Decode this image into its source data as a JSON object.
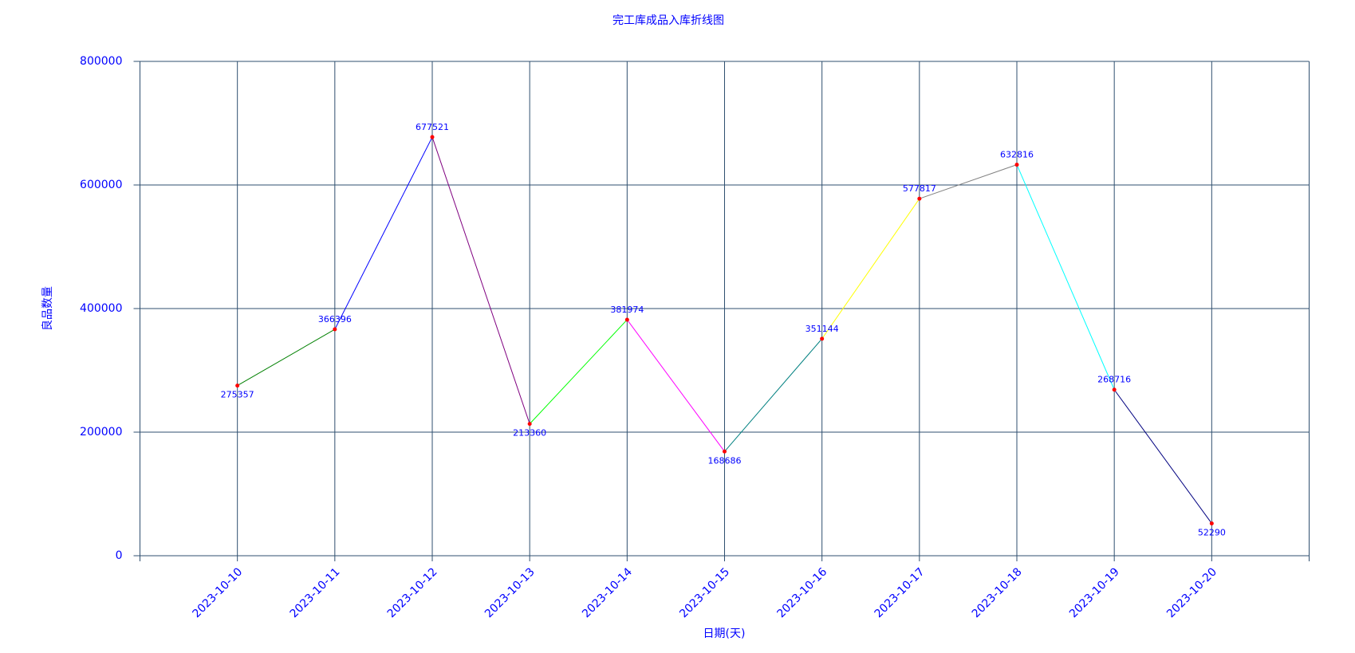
{
  "chart_data": {
    "type": "line",
    "title": "完工库成品入库折线图",
    "x_label": "日期(天)",
    "y_label": "良品数量",
    "categories": [
      "2023-10-10",
      "2023-10-11",
      "2023-10-12",
      "2023-10-13",
      "2023-10-14",
      "2023-10-15",
      "2023-10-16",
      "2023-10-17",
      "2023-10-18",
      "2023-10-19",
      "2023-10-20"
    ],
    "values": [
      275357,
      366396,
      677521,
      213360,
      381974,
      168686,
      351144,
      577817,
      632816,
      268716,
      52290
    ],
    "segment_colors": [
      "green",
      "blue",
      "purple",
      "lime",
      "magenta",
      "teal",
      "yellow",
      "gray",
      "cyan",
      "navy"
    ],
    "point_color": "red",
    "text_color": "blue",
    "grid_color": "#2f4f6f",
    "ylim": [
      0,
      800000
    ],
    "yticks": [
      0,
      200000,
      400000,
      600000,
      800000
    ],
    "grid": true
  }
}
